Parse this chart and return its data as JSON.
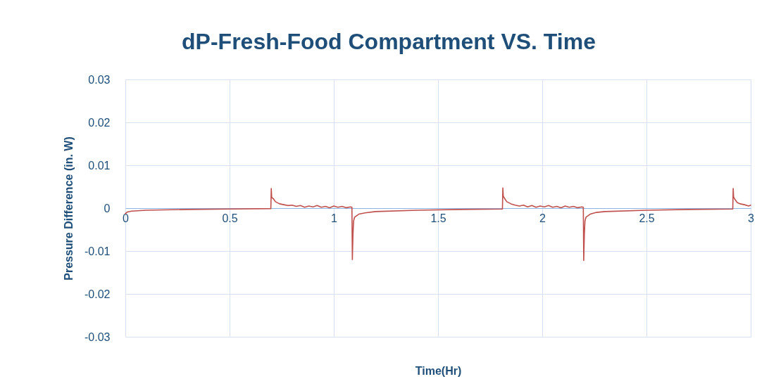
{
  "chart_data": {
    "type": "line",
    "title": "dP-Fresh-Food Compartment VS. Time",
    "xlabel": "Time(Hr)",
    "ylabel": "Pressure Difference (in. W)",
    "x": [
      0,
      0.01,
      0.03,
      0.1,
      0.3,
      0.5,
      0.698,
      0.7,
      0.702,
      0.71,
      0.72,
      0.74,
      0.76,
      0.78,
      0.8,
      0.82,
      0.84,
      0.86,
      0.88,
      0.9,
      0.92,
      0.94,
      0.96,
      0.98,
      1.0,
      1.02,
      1.04,
      1.06,
      1.08,
      1.087,
      1.089,
      1.092,
      1.095,
      1.1,
      1.12,
      1.15,
      1.2,
      1.4,
      1.6,
      1.809,
      1.811,
      1.813,
      1.82,
      1.83,
      1.85,
      1.87,
      1.89,
      1.91,
      1.93,
      1.95,
      1.97,
      1.99,
      2.01,
      2.03,
      2.05,
      2.07,
      2.09,
      2.11,
      2.13,
      2.15,
      2.17,
      2.19,
      2.197,
      2.199,
      2.202,
      2.205,
      2.21,
      2.23,
      2.26,
      2.3,
      2.5,
      2.7,
      2.914,
      2.916,
      2.918,
      2.925,
      2.935,
      2.95,
      2.97,
      2.99,
      3.0
    ],
    "series": [
      {
        "color": "#c0504d",
        "values": [
          -0.0013,
          -0.0009,
          -0.0007,
          -0.0005,
          -0.0003,
          -0.0002,
          -0.0001,
          0.0046,
          0.0025,
          0.0022,
          0.0015,
          0.001,
          0.0008,
          0.0006,
          0.0007,
          0.0004,
          0.0006,
          0.0002,
          0.0005,
          0.0003,
          0.0006,
          0.0002,
          0.0004,
          0.0001,
          0.0005,
          0.0002,
          0.0004,
          0.0001,
          0.0003,
          0.0002,
          -0.012,
          -0.006,
          -0.003,
          -0.0021,
          -0.0014,
          -0.0011,
          -0.0008,
          -0.0005,
          -0.0003,
          -0.0002,
          0.0047,
          0.0028,
          0.0022,
          0.0015,
          0.001,
          0.0007,
          0.0005,
          0.0007,
          0.0003,
          0.0006,
          0.0002,
          0.0005,
          0.0003,
          0.0006,
          0.0002,
          0.0004,
          0.0001,
          0.0005,
          0.0002,
          0.0004,
          0.0001,
          0.0003,
          0.0002,
          -0.0122,
          -0.006,
          -0.003,
          -0.0021,
          -0.0014,
          -0.001,
          -0.0008,
          -0.0005,
          -0.0003,
          -0.0002,
          0.0046,
          0.0026,
          0.002,
          0.0013,
          0.001,
          0.0008,
          0.0005,
          0.0007
        ]
      }
    ],
    "xlim": [
      0,
      3
    ],
    "xticks": [
      0,
      0.5,
      1,
      1.5,
      2,
      2.5,
      3
    ],
    "ylim": [
      -0.03,
      0.03
    ],
    "yticks": [
      -0.03,
      -0.02,
      -0.01,
      0,
      0.01,
      0.02,
      0.03
    ],
    "grid": true,
    "marker": "none",
    "line_style": "solid"
  }
}
